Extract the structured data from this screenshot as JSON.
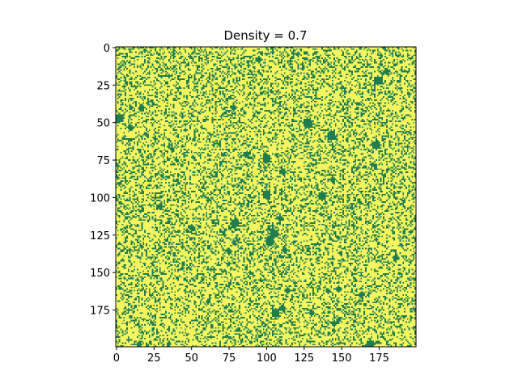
{
  "chart_data": {
    "type": "heatmap",
    "title": "Density = 0.7",
    "xlabel": "",
    "ylabel": "",
    "grid_size": [
      200,
      200
    ],
    "density": 0.7,
    "xlim": [
      0,
      200
    ],
    "ylim": [
      200,
      0
    ],
    "x_ticks": [
      0,
      25,
      50,
      75,
      100,
      125,
      150,
      175
    ],
    "x_tick_labels": [
      "0",
      "25",
      "50",
      "75",
      "100",
      "125",
      "150",
      "175"
    ],
    "y_ticks": [
      0,
      25,
      50,
      75,
      100,
      125,
      150,
      175
    ],
    "y_tick_labels": [
      "0",
      "25",
      "50",
      "75",
      "100",
      "125",
      "150",
      "175"
    ],
    "cell_values": [
      0,
      1
    ],
    "grid": false,
    "colors": {
      "empty": "#1f7d50",
      "filled": "#f5f55f"
    }
  }
}
